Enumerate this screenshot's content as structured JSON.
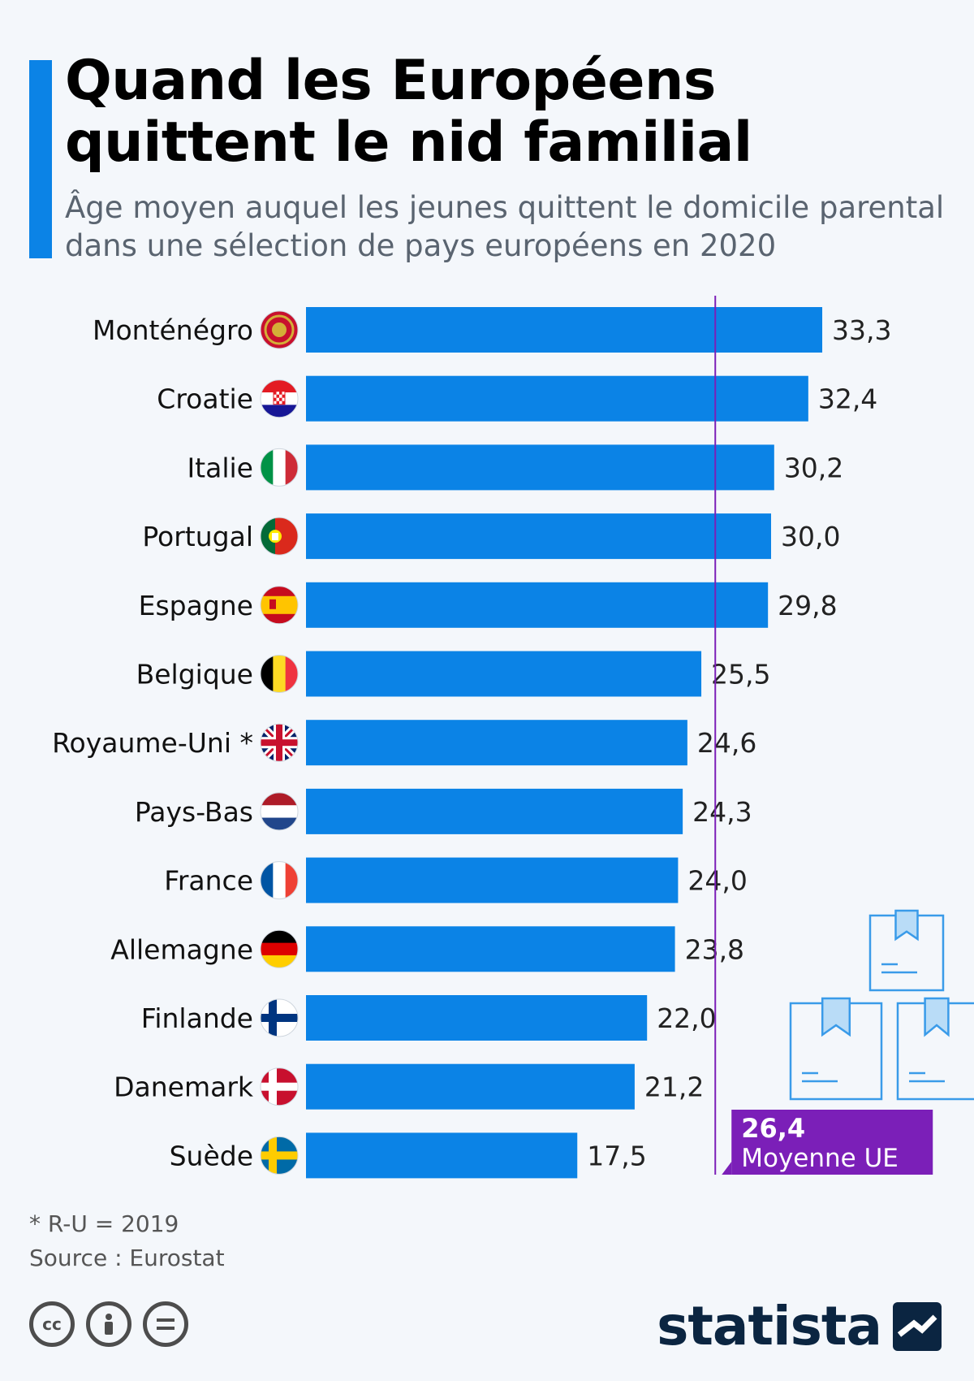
{
  "header": {
    "title": "Quand les Européens quittent le nid familial",
    "subtitle": "Âge moyen auquel les jeunes quittent le domicile parental dans une sélection de pays européens en 2020"
  },
  "chart_data": {
    "type": "bar",
    "orientation": "horizontal",
    "title": "Quand les Européens quittent le nid familial",
    "subtitle": "Âge moyen auquel les jeunes quittent le domicile parental dans une sélection de pays européens en 2020",
    "categories": [
      "Monténégro",
      "Croatie",
      "Italie",
      "Portugal",
      "Espagne",
      "Belgique",
      "Royaume-Uni *",
      "Pays-Bas",
      "France",
      "Allemagne",
      "Finlande",
      "Danemark",
      "Suède"
    ],
    "values": [
      33.3,
      32.4,
      30.2,
      30.0,
      29.8,
      25.5,
      24.6,
      24.3,
      24.0,
      23.8,
      22.0,
      21.2,
      17.5
    ],
    "value_labels": [
      "33,3",
      "32,4",
      "30,2",
      "30,0",
      "29,8",
      "25,5",
      "24,6",
      "24,3",
      "24,0",
      "23,8",
      "22,0",
      "21,2",
      "17,5"
    ],
    "xlim": [
      0,
      36
    ],
    "bar_color": "#0b83e6",
    "grid": false,
    "reference_line": {
      "value": 26.4,
      "value_label": "26,4",
      "label": "Moyenne UE",
      "color": "#7b1fb8"
    }
  },
  "flags": [
    "montenegro-flag-icon",
    "croatia-flag-icon",
    "italy-flag-icon",
    "portugal-flag-icon",
    "spain-flag-icon",
    "belgium-flag-icon",
    "uk-flag-icon",
    "netherlands-flag-icon",
    "france-flag-icon",
    "germany-flag-icon",
    "finland-flag-icon",
    "denmark-flag-icon",
    "sweden-flag-icon"
  ],
  "footer": {
    "note": "* R-U = 2019",
    "source": "Source : Eurostat",
    "brand": "statista"
  },
  "colors": {
    "accent": "#0b83e6",
    "reference": "#7b1fb8",
    "brand": "#0b2541"
  }
}
